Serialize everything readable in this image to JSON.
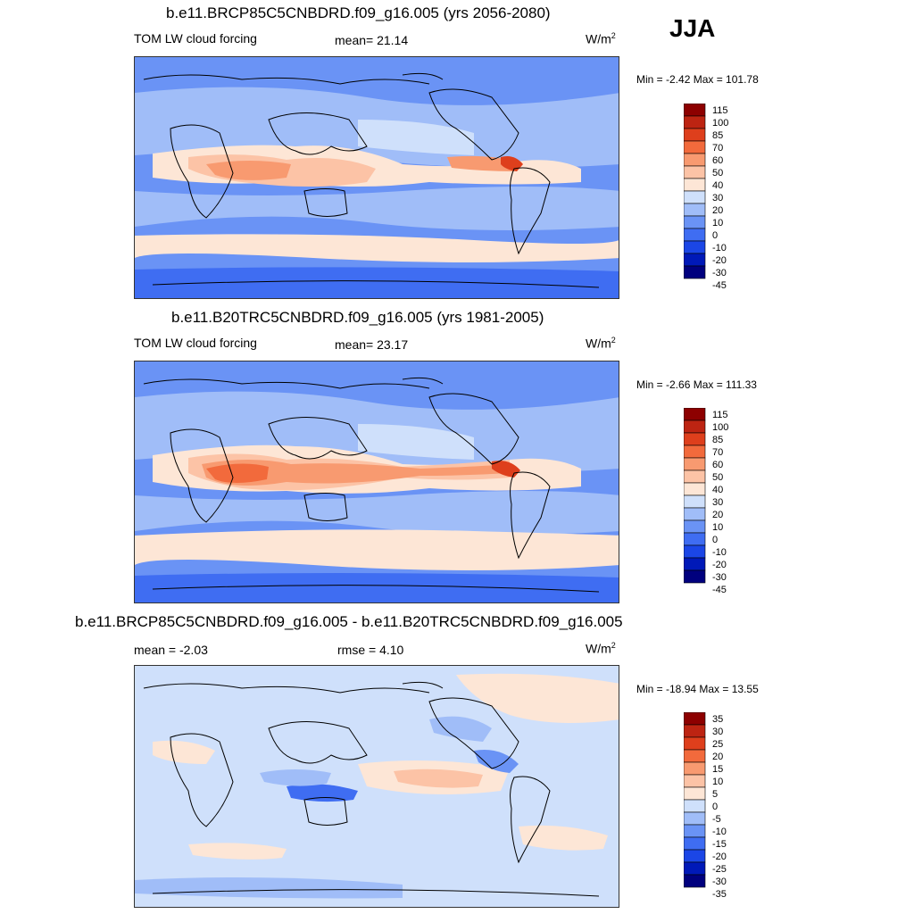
{
  "season": "JJA",
  "colors": {
    "abs_scale": [
      "#00007e",
      "#0019b8",
      "#1b46e6",
      "#3f6df2",
      "#6a93f5",
      "#a0bdf8",
      "#cfe0fb",
      "#fde6d6",
      "#fcc3a6",
      "#f89a70",
      "#f26a3c",
      "#de3f1c",
      "#bd2412",
      "#8d0000"
    ],
    "diff_scale": [
      "#00007e",
      "#0019b8",
      "#1b46e6",
      "#3f6df2",
      "#6a93f5",
      "#a0bdf8",
      "#cfe0fb",
      "#fde6d6",
      "#fcc3a6",
      "#f89a70",
      "#f26a3c",
      "#de3f1c",
      "#bd2412",
      "#8d0000"
    ],
    "land_line": "#000000"
  },
  "panels": [
    {
      "title": "b.e11.BRCP85C5CNBDRD.f09_g16.005 (yrs 2056-2080)",
      "left_label": "TOM LW cloud forcing",
      "mean_label": "mean=  21.14",
      "unit_base": "W/m",
      "unit_exp": "2",
      "minmax": "Min =  -2.42 Max = 101.78",
      "colorbar_ticks": [
        "115",
        "100",
        "85",
        "70",
        "60",
        "50",
        "40",
        "30",
        "20",
        "10",
        "0",
        "-10",
        "-20",
        "-30",
        "-45"
      ]
    },
    {
      "title": "b.e11.B20TRC5CNBDRD.f09_g16.005 (yrs 1981-2005)",
      "left_label": "TOM LW cloud forcing",
      "mean_label": "mean=  23.17",
      "unit_base": "W/m",
      "unit_exp": "2",
      "minmax": "Min =  -2.66 Max = 111.33",
      "colorbar_ticks": [
        "115",
        "100",
        "85",
        "70",
        "60",
        "50",
        "40",
        "30",
        "20",
        "10",
        "0",
        "-10",
        "-20",
        "-30",
        "-45"
      ]
    },
    {
      "title": "b.e11.BRCP85C5CNBDRD.f09_g16.005 - b.e11.B20TRC5CNBDRD.f09_g16.005",
      "left_label": "mean =  -2.03",
      "mean_label": "rmse =   4.10",
      "unit_base": "W/m",
      "unit_exp": "2",
      "minmax": "Min = -18.94 Max =  13.55",
      "colorbar_ticks": [
        "35",
        "30",
        "25",
        "20",
        "15",
        "10",
        "5",
        "0",
        "-5",
        "-10",
        "-15",
        "-20",
        "-25",
        "-30",
        "-35"
      ]
    }
  ]
}
